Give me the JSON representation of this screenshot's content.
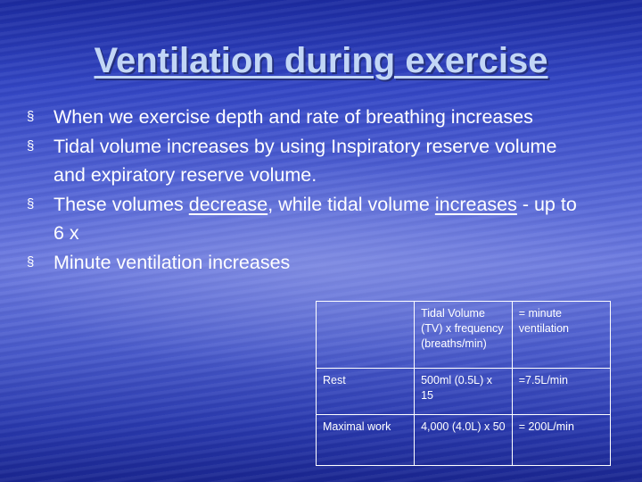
{
  "slide": {
    "title": "Ventilation during exercise",
    "bullet_marker": "§",
    "bullets": [
      {
        "text": "When we exercise depth and rate of breathing increases"
      },
      {
        "text": "Tidal volume increases by using Inspiratory reserve volume and expiratory reserve volume."
      },
      {
        "pre": "These volumes ",
        "u1": "decrease",
        "mid": ", while tidal volume ",
        "u2": "increases",
        "post": " - up to 6 x"
      },
      {
        "text": "Minute ventilation increases"
      }
    ]
  },
  "table": {
    "header": [
      "",
      "Tidal Volume (TV) x frequency (breaths/min)",
      "= minute ventilation"
    ],
    "rows": [
      [
        "Rest",
        "500ml (0.5L) x 15",
        "=7.5L/min"
      ],
      [
        "Maximal work",
        "4,000 (4.0L) x 50",
        "= 200L/min"
      ]
    ]
  }
}
